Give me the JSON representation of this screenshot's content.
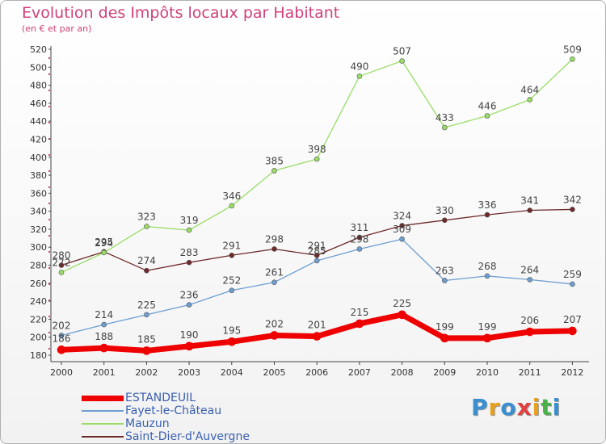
{
  "header": {
    "title": "Evolution des Impôts locaux par Habitant",
    "subtitle": "(en € et par an)"
  },
  "logo": {
    "text": "Proxiti",
    "colors": [
      "#3a8fd0",
      "#e8a020",
      "#3a8fd0",
      "#e04040",
      "#e8a020",
      "#4ab04a",
      "#3a8fd0"
    ]
  },
  "chart_data": {
    "type": "line",
    "x": [
      "2000",
      "2001",
      "2002",
      "2003",
      "2004",
      "2005",
      "2006",
      "2007",
      "2008",
      "2009",
      "2010",
      "2011",
      "2012"
    ],
    "ylim": [
      180,
      520
    ],
    "yticks": [
      180,
      200,
      220,
      240,
      260,
      280,
      300,
      320,
      340,
      360,
      380,
      400,
      420,
      440,
      460,
      480,
      500,
      520
    ],
    "grid": false,
    "legend_position": "bottom-left",
    "series": [
      {
        "name": "ESTANDEUIL",
        "color": "#ee0000",
        "values": [
          186,
          188,
          185,
          190,
          195,
          202,
          201,
          215,
          225,
          199,
          199,
          206,
          207
        ]
      },
      {
        "name": "Fayet-le-Château",
        "color": "#6e9ed0",
        "values": [
          202,
          214,
          225,
          236,
          252,
          261,
          285,
          298,
          309,
          263,
          268,
          264,
          259
        ]
      },
      {
        "name": "Mauzun",
        "color": "#99dd66",
        "values": [
          272,
          294,
          323,
          319,
          346,
          385,
          398,
          490,
          507,
          433,
          446,
          464,
          509
        ]
      },
      {
        "name": "Saint-Dier-d'Auvergne",
        "color": "#6e2a2a",
        "values": [
          280,
          295,
          274,
          283,
          291,
          298,
          291,
          311,
          324,
          330,
          336,
          341,
          342
        ]
      }
    ]
  }
}
